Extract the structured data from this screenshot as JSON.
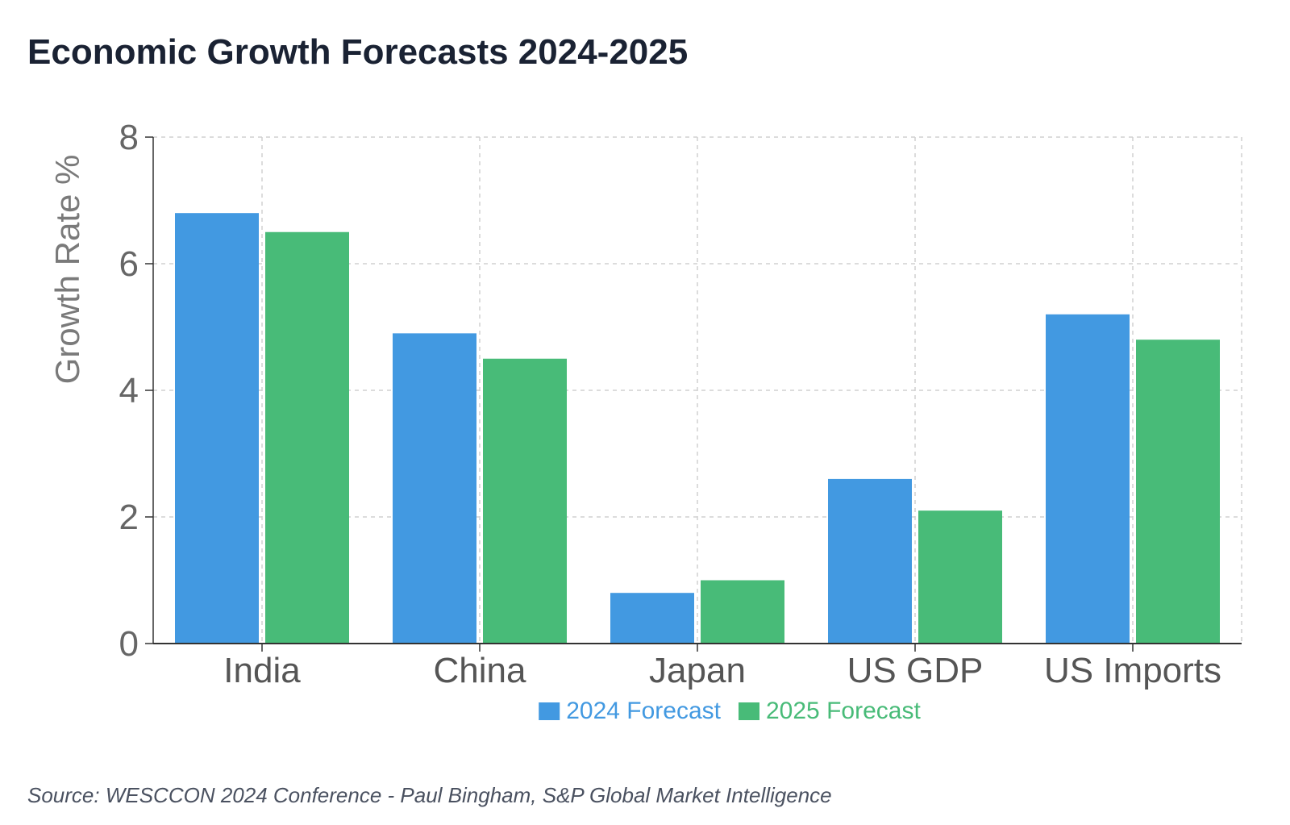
{
  "title": "Economic Growth Forecasts 2024-2025",
  "source": "Source: WESCCON 2024 Conference - Paul Bingham, S&P Global Market Intelligence",
  "chart_data": {
    "type": "bar",
    "categories": [
      "India",
      "China",
      "Japan",
      "US GDP",
      "US Imports"
    ],
    "series": [
      {
        "name": "2024 Forecast",
        "color": "#4299e1",
        "values": [
          6.8,
          4.9,
          0.8,
          2.6,
          5.2
        ]
      },
      {
        "name": "2025 Forecast",
        "color": "#48bb78",
        "values": [
          6.5,
          4.5,
          1.0,
          2.1,
          4.8
        ]
      }
    ],
    "title": "Economic Growth Forecasts 2024-2025",
    "xlabel": "",
    "ylabel": "Growth Rate %",
    "ylim": [
      0,
      8
    ],
    "yticks": [
      0,
      2,
      4,
      6,
      8
    ],
    "grid": true,
    "legend_position": "bottom-center"
  }
}
